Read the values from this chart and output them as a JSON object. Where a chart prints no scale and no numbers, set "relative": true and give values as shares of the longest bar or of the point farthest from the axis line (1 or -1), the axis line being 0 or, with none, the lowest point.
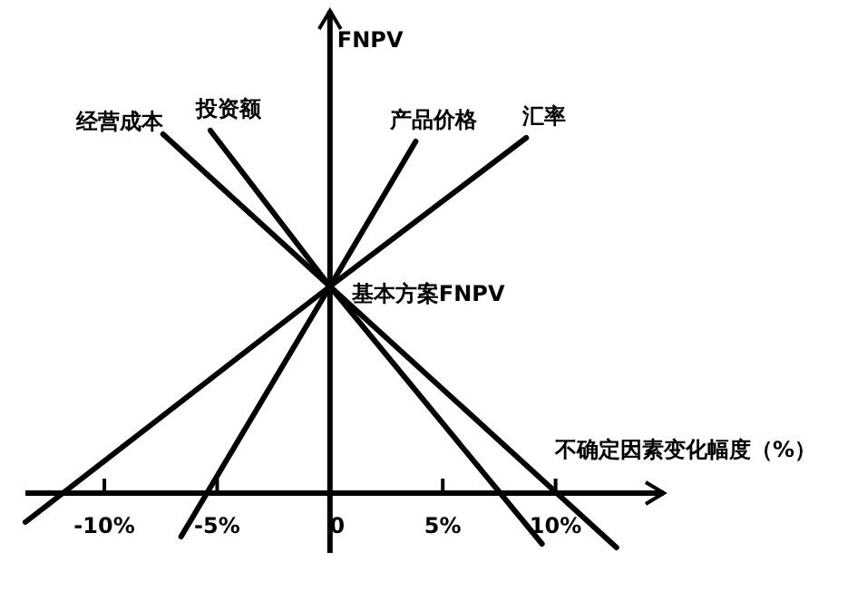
{
  "chart_data": {
    "type": "line",
    "relative": true,
    "ylabel": "FNPV",
    "xlabel": "不确定因素变化幅度（%）",
    "xlim": [
      -13.5,
      14.8
    ],
    "xticks": [
      {
        "value": -10,
        "label": "-10%"
      },
      {
        "value": -5,
        "label": "-5%"
      },
      0,
      {
        "value": 5,
        "label": "5%"
      },
      {
        "value": 10,
        "label": "10%"
      }
    ],
    "series": [
      {
        "name": "经营成本",
        "color": "#000000",
        "x": [
          -7.4,
          0,
          12.7
        ],
        "values": [
          0.99,
          0.57,
          -0.15
        ]
      },
      {
        "name": "投资额",
        "color": "#000000",
        "x": [
          -5.3,
          0,
          9.4
        ],
        "values": [
          1.0,
          0.57,
          -0.14
        ]
      },
      {
        "name": "产品价格",
        "color": "#000000",
        "x": [
          -6.6,
          0,
          3.8
        ],
        "values": [
          -0.12,
          0.57,
          0.97
        ]
      },
      {
        "name": "汇率",
        "color": "#000000",
        "x": [
          -13.5,
          0,
          8.7
        ],
        "values": [
          -0.08,
          0.57,
          0.98
        ]
      }
    ],
    "annotations": [
      {
        "text": "基本方案FNPV",
        "x": 0,
        "y": 0.57
      }
    ],
    "marker": "none",
    "line_style": "solid"
  }
}
